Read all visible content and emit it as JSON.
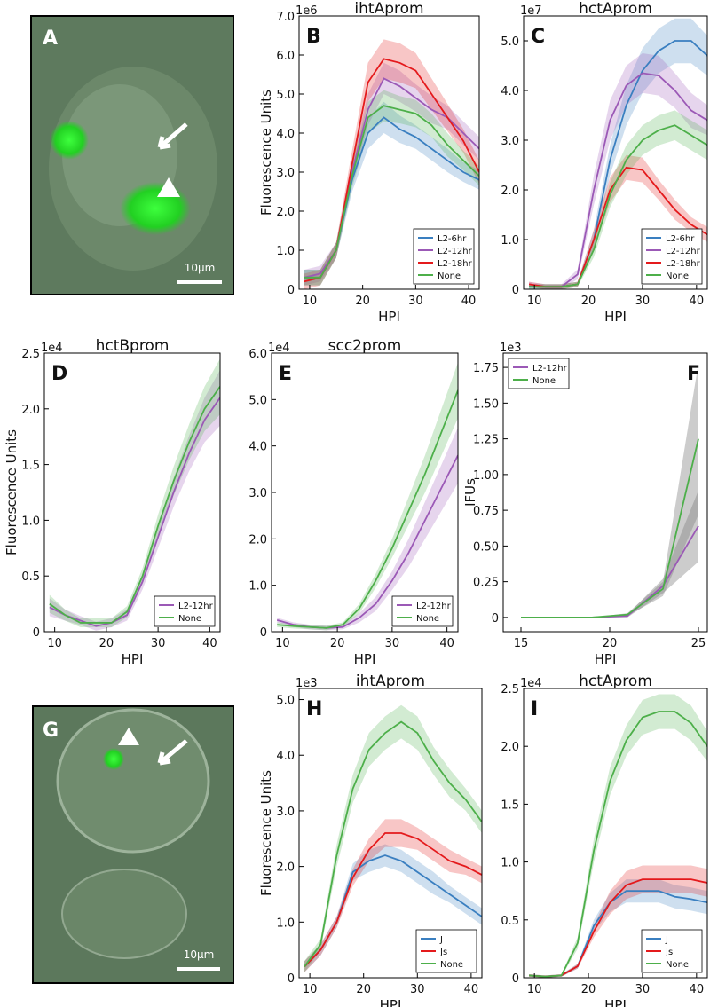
{
  "chart_data": [
    {
      "type": "line",
      "panel_label": "B",
      "title": "ihtAprom",
      "y_scale_label": "1e6",
      "ylabel": "Fluorescence Units",
      "xlabel": "HPI",
      "x": [
        9,
        12,
        15,
        18,
        21,
        24,
        27,
        30,
        33,
        36,
        39,
        42
      ],
      "xlim": [
        8,
        42
      ],
      "xticks": [
        10,
        20,
        30,
        40
      ],
      "ylim": [
        0,
        7
      ],
      "yticks": [
        0,
        {
          "value": 1,
          "label": "1.0"
        },
        {
          "value": 2,
          "label": "2.0"
        },
        {
          "value": 3,
          "label": "3.0"
        },
        {
          "value": 4,
          "label": "4.0"
        },
        {
          "value": 5,
          "label": "5.0"
        },
        {
          "value": 6,
          "label": "6.0"
        },
        {
          "value": 7,
          "label": "7.0"
        }
      ],
      "legend": "lower right",
      "series": [
        {
          "name": "L2-6hr",
          "color": "#3a7fc0",
          "values": [
            0.3,
            0.3,
            1.0,
            2.8,
            4.0,
            4.4,
            4.1,
            3.9,
            3.6,
            3.3,
            3.0,
            2.8
          ],
          "error": [
            0.2,
            0.2,
            0.2,
            0.3,
            0.4,
            0.4,
            0.35,
            0.3,
            0.3,
            0.3,
            0.25,
            0.25
          ]
        },
        {
          "name": "L2-12hr",
          "color": "#9b59b6",
          "values": [
            0.3,
            0.4,
            1.0,
            3.0,
            4.6,
            5.4,
            5.2,
            4.9,
            4.6,
            4.4,
            4.0,
            3.6
          ],
          "error": [
            0.2,
            0.2,
            0.2,
            0.3,
            0.4,
            0.4,
            0.4,
            0.35,
            0.35,
            0.3,
            0.3,
            0.3
          ]
        },
        {
          "name": "L2-18hr",
          "color": "#e41a1c",
          "values": [
            0.2,
            0.3,
            1.0,
            3.2,
            5.3,
            5.9,
            5.8,
            5.6,
            5.0,
            4.4,
            3.8,
            3.0
          ],
          "error": [
            0.2,
            0.2,
            0.2,
            0.35,
            0.5,
            0.5,
            0.5,
            0.45,
            0.4,
            0.35,
            0.3,
            0.3
          ]
        },
        {
          "name": "None",
          "color": "#4daf4a",
          "values": [
            0.3,
            0.3,
            1.0,
            2.9,
            4.4,
            4.7,
            4.6,
            4.5,
            4.2,
            3.7,
            3.3,
            2.9
          ],
          "error": [
            0.2,
            0.2,
            0.2,
            0.3,
            0.4,
            0.4,
            0.35,
            0.35,
            0.3,
            0.3,
            0.25,
            0.25
          ]
        }
      ]
    },
    {
      "type": "line",
      "panel_label": "C",
      "title": "hctAprom",
      "y_scale_label": "1e7",
      "xlabel": "HPI",
      "x": [
        9,
        12,
        15,
        18,
        21,
        24,
        27,
        30,
        33,
        36,
        39,
        42
      ],
      "xlim": [
        8,
        42
      ],
      "xticks": [
        10,
        20,
        30,
        40
      ],
      "ylim": [
        0,
        5.5
      ],
      "yticks": [
        0,
        {
          "value": 1,
          "label": "1.0"
        },
        {
          "value": 2,
          "label": "2.0"
        },
        {
          "value": 3,
          "label": "3.0"
        },
        {
          "value": 4,
          "label": "4.0"
        },
        {
          "value": 5,
          "label": "5.0"
        }
      ],
      "legend": "lower right",
      "series": [
        {
          "name": "L2-6hr",
          "color": "#3a7fc0",
          "values": [
            0.05,
            0.05,
            0.05,
            0.1,
            1.0,
            2.6,
            3.7,
            4.4,
            4.8,
            5.0,
            5.0,
            4.7
          ],
          "error": [
            0.05,
            0.05,
            0.05,
            0.05,
            0.2,
            0.3,
            0.4,
            0.45,
            0.45,
            0.45,
            0.45,
            0.4
          ]
        },
        {
          "name": "L2-12hr",
          "color": "#9b59b6",
          "values": [
            0.1,
            0.05,
            0.05,
            0.3,
            2.0,
            3.4,
            4.1,
            4.35,
            4.3,
            4.0,
            3.6,
            3.4
          ],
          "error": [
            0.05,
            0.05,
            0.05,
            0.1,
            0.3,
            0.4,
            0.4,
            0.4,
            0.4,
            0.35,
            0.35,
            0.3
          ]
        },
        {
          "name": "L2-18hr",
          "color": "#e41a1c",
          "values": [
            0.1,
            0.05,
            0.05,
            0.1,
            1.0,
            2.0,
            2.45,
            2.4,
            2.0,
            1.6,
            1.3,
            1.1
          ],
          "error": [
            0.05,
            0.05,
            0.05,
            0.05,
            0.2,
            0.25,
            0.25,
            0.25,
            0.2,
            0.2,
            0.15,
            0.15
          ]
        },
        {
          "name": "None",
          "color": "#4daf4a",
          "values": [
            0.05,
            0.05,
            0.05,
            0.1,
            0.8,
            1.9,
            2.6,
            3.0,
            3.2,
            3.3,
            3.1,
            2.9
          ],
          "error": [
            0.05,
            0.05,
            0.05,
            0.05,
            0.15,
            0.25,
            0.3,
            0.3,
            0.3,
            0.3,
            0.3,
            0.3
          ]
        }
      ]
    },
    {
      "type": "line",
      "panel_label": "D",
      "title": "hctBprom",
      "y_scale_label": "1e4",
      "ylabel": "Fluorescence Units",
      "xlabel": "HPI",
      "x": [
        9,
        12,
        15,
        18,
        21,
        24,
        27,
        30,
        33,
        36,
        39,
        42
      ],
      "xlim": [
        8,
        42
      ],
      "xticks": [
        10,
        20,
        30,
        40
      ],
      "ylim": [
        0,
        2.5
      ],
      "yticks": [
        0,
        0.5,
        {
          "value": 1,
          "label": "1.0"
        },
        1.5,
        {
          "value": 2,
          "label": "2.0"
        },
        2.5
      ],
      "legend": "lower right",
      "series": [
        {
          "name": "L2-12hr",
          "color": "#9b59b6",
          "values": [
            0.22,
            0.15,
            0.1,
            0.05,
            0.08,
            0.15,
            0.45,
            0.85,
            1.25,
            1.6,
            1.9,
            2.1
          ],
          "error": [
            0.08,
            0.05,
            0.04,
            0.04,
            0.04,
            0.05,
            0.07,
            0.1,
            0.13,
            0.16,
            0.2,
            0.25
          ]
        },
        {
          "name": "None",
          "color": "#4daf4a",
          "values": [
            0.25,
            0.15,
            0.08,
            0.08,
            0.08,
            0.18,
            0.5,
            0.95,
            1.35,
            1.7,
            2.0,
            2.2
          ],
          "error": [
            0.08,
            0.05,
            0.04,
            0.04,
            0.04,
            0.05,
            0.07,
            0.1,
            0.13,
            0.16,
            0.2,
            0.25
          ]
        }
      ]
    },
    {
      "type": "line",
      "panel_label": "E",
      "title": "scc2prom",
      "y_scale_label": "1e4",
      "xlabel": "HPI",
      "x": [
        9,
        12,
        15,
        18,
        21,
        24,
        27,
        30,
        33,
        36,
        39,
        42
      ],
      "xlim": [
        8,
        42
      ],
      "xticks": [
        10,
        20,
        30,
        40
      ],
      "ylim": [
        0,
        6
      ],
      "yticks": [
        0,
        {
          "value": 1,
          "label": "1.0"
        },
        {
          "value": 2,
          "label": "2.0"
        },
        {
          "value": 3,
          "label": "3.0"
        },
        {
          "value": 4,
          "label": "4.0"
        },
        {
          "value": 5,
          "label": "5.0"
        },
        {
          "value": 6,
          "label": "6.0"
        }
      ],
      "legend": "lower right",
      "series": [
        {
          "name": "L2-12hr",
          "color": "#9b59b6",
          "values": [
            0.25,
            0.15,
            0.1,
            0.08,
            0.1,
            0.3,
            0.6,
            1.1,
            1.7,
            2.4,
            3.1,
            3.8
          ],
          "error": [
            0.05,
            0.05,
            0.05,
            0.05,
            0.05,
            0.1,
            0.15,
            0.2,
            0.3,
            0.4,
            0.5,
            0.6
          ]
        },
        {
          "name": "None",
          "color": "#4daf4a",
          "values": [
            0.15,
            0.12,
            0.1,
            0.08,
            0.15,
            0.5,
            1.1,
            1.8,
            2.6,
            3.4,
            4.3,
            5.2
          ],
          "error": [
            0.05,
            0.05,
            0.05,
            0.05,
            0.05,
            0.1,
            0.15,
            0.2,
            0.3,
            0.4,
            0.5,
            0.6
          ]
        }
      ]
    },
    {
      "type": "line",
      "panel_label": "F",
      "y_scale_label": "1e3",
      "ylabel": "IFUs",
      "xlabel": "HPI",
      "x": [
        15,
        17,
        19,
        21,
        23,
        25
      ],
      "xlim": [
        14,
        25.5
      ],
      "xticks": [
        15,
        20,
        25
      ],
      "ylim": [
        -0.1,
        1.85
      ],
      "yticks": [
        0,
        0.25,
        {
          "value": 0.5,
          "label": "0.50"
        },
        0.75,
        {
          "value": 1,
          "label": "1.00"
        },
        1.25,
        {
          "value": 1.5,
          "label": "1.50"
        },
        1.75
      ],
      "legend": "upper left",
      "band_color": "#808080",
      "series": [
        {
          "name": "L2-12hr",
          "color": "#9b59b6",
          "values": [
            0,
            0,
            0,
            0.01,
            0.22,
            0.64
          ],
          "error": [
            0,
            0,
            0,
            0.01,
            0.05,
            0.25
          ]
        },
        {
          "name": "None",
          "color": "#4daf4a",
          "values": [
            0,
            0,
            0,
            0.02,
            0.2,
            1.25
          ],
          "error": [
            0,
            0,
            0,
            0.01,
            0.05,
            0.53
          ]
        }
      ]
    },
    {
      "type": "line",
      "panel_label": "H",
      "title": "ihtAprom",
      "y_scale_label": "1e3",
      "ylabel": "Fluorescence Units",
      "xlabel": "HPI",
      "x": [
        9,
        12,
        15,
        18,
        21,
        24,
        27,
        30,
        33,
        36,
        39,
        42
      ],
      "xlim": [
        8,
        42
      ],
      "xticks": [
        10,
        20,
        30,
        40
      ],
      "ylim": [
        0,
        5.2
      ],
      "yticks": [
        0,
        {
          "value": 1,
          "label": "1.0"
        },
        {
          "value": 2,
          "label": "2.0"
        },
        {
          "value": 3,
          "label": "3.0"
        },
        {
          "value": 4,
          "label": "4.0"
        },
        {
          "value": 5,
          "label": "5.0"
        }
      ],
      "legend": "lower right",
      "series": [
        {
          "name": "J",
          "color": "#3a7fc0",
          "values": [
            0.2,
            0.5,
            1.0,
            1.9,
            2.1,
            2.2,
            2.1,
            1.9,
            1.7,
            1.5,
            1.3,
            1.1
          ],
          "error": [
            0.1,
            0.1,
            0.1,
            0.15,
            0.2,
            0.2,
            0.2,
            0.2,
            0.2,
            0.15,
            0.15,
            0.15
          ]
        },
        {
          "name": "Js",
          "color": "#e41a1c",
          "values": [
            0.2,
            0.5,
            1.0,
            1.8,
            2.3,
            2.6,
            2.6,
            2.5,
            2.3,
            2.1,
            2.0,
            1.85
          ],
          "error": [
            0.1,
            0.1,
            0.1,
            0.15,
            0.2,
            0.25,
            0.25,
            0.2,
            0.2,
            0.2,
            0.15,
            0.15
          ]
        },
        {
          "name": "None",
          "color": "#4daf4a",
          "values": [
            0.2,
            0.6,
            2.2,
            3.4,
            4.1,
            4.4,
            4.6,
            4.4,
            3.9,
            3.5,
            3.2,
            2.8
          ],
          "error": [
            0.1,
            0.1,
            0.2,
            0.25,
            0.3,
            0.3,
            0.3,
            0.3,
            0.25,
            0.25,
            0.2,
            0.2
          ]
        }
      ]
    },
    {
      "type": "line",
      "panel_label": "I",
      "title": "hctAprom",
      "y_scale_label": "1e4",
      "xlabel": "HPI",
      "x": [
        9,
        12,
        15,
        18,
        21,
        24,
        27,
        30,
        33,
        36,
        39,
        42
      ],
      "xlim": [
        8,
        42
      ],
      "xticks": [
        10,
        20,
        30,
        40
      ],
      "ylim": [
        0,
        2.5
      ],
      "yticks": [
        0,
        0.5,
        {
          "value": 1,
          "label": "1.0"
        },
        1.5,
        {
          "value": 2,
          "label": "2.0"
        },
        2.5
      ],
      "legend": "lower right",
      "series": [
        {
          "name": "J",
          "color": "#3a7fc0",
          "values": [
            0.02,
            0.01,
            0.02,
            0.1,
            0.45,
            0.65,
            0.75,
            0.75,
            0.75,
            0.7,
            0.68,
            0.65
          ],
          "error": [
            0.01,
            0.01,
            0.01,
            0.02,
            0.05,
            0.08,
            0.1,
            0.1,
            0.1,
            0.1,
            0.1,
            0.1
          ]
        },
        {
          "name": "Js",
          "color": "#e41a1c",
          "values": [
            0.02,
            0.01,
            0.02,
            0.1,
            0.4,
            0.65,
            0.8,
            0.85,
            0.85,
            0.85,
            0.85,
            0.82
          ],
          "error": [
            0.01,
            0.01,
            0.01,
            0.02,
            0.05,
            0.1,
            0.12,
            0.12,
            0.12,
            0.12,
            0.12,
            0.12
          ]
        },
        {
          "name": "None",
          "color": "#4daf4a",
          "values": [
            0.02,
            0.01,
            0.02,
            0.3,
            1.1,
            1.7,
            2.05,
            2.25,
            2.3,
            2.3,
            2.2,
            2.0
          ],
          "error": [
            0.01,
            0.01,
            0.01,
            0.05,
            0.1,
            0.12,
            0.13,
            0.15,
            0.15,
            0.15,
            0.15,
            0.13
          ]
        }
      ]
    }
  ],
  "images": [
    {
      "panel_label": "A",
      "scale_bar": "10μm"
    },
    {
      "panel_label": "G",
      "scale_bar": "10μm"
    }
  ]
}
